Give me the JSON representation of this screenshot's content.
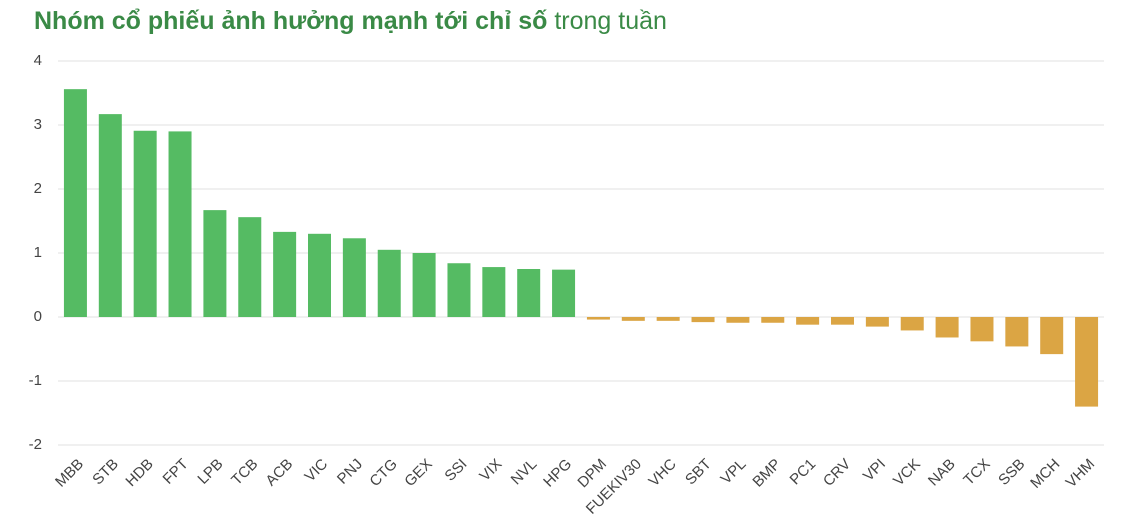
{
  "chart_data": {
    "type": "bar",
    "title": "Nhóm cổ phiếu ảnh hưởng mạnh tới chỉ số",
    "subtitle": "trong tuần",
    "categories": [
      "MBB",
      "STB",
      "HDB",
      "FPT",
      "LPB",
      "TCB",
      "ACB",
      "VIC",
      "PNJ",
      "CTG",
      "GEX",
      "SSI",
      "VIX",
      "NVL",
      "HPG",
      "DPM",
      "FUEKIV30",
      "VHC",
      "SBT",
      "VPL",
      "BMP",
      "PC1",
      "CRV",
      "VPI",
      "VCK",
      "NAB",
      "TCX",
      "SSB",
      "MCH",
      "VHM"
    ],
    "values": [
      3.56,
      3.17,
      2.91,
      2.9,
      1.67,
      1.56,
      1.33,
      1.3,
      1.23,
      1.05,
      1.0,
      0.84,
      0.78,
      0.75,
      0.74,
      -0.04,
      -0.06,
      -0.06,
      -0.08,
      -0.09,
      -0.09,
      -0.12,
      -0.12,
      -0.15,
      -0.21,
      -0.32,
      -0.38,
      -0.46,
      -0.58,
      -1.4
    ],
    "positive_color": "#55bb63",
    "negative_color": "#dba544",
    "ylim": [
      -2,
      4
    ],
    "yticks": [
      -2,
      -1,
      0,
      1,
      2,
      3,
      4
    ],
    "grid": true
  }
}
